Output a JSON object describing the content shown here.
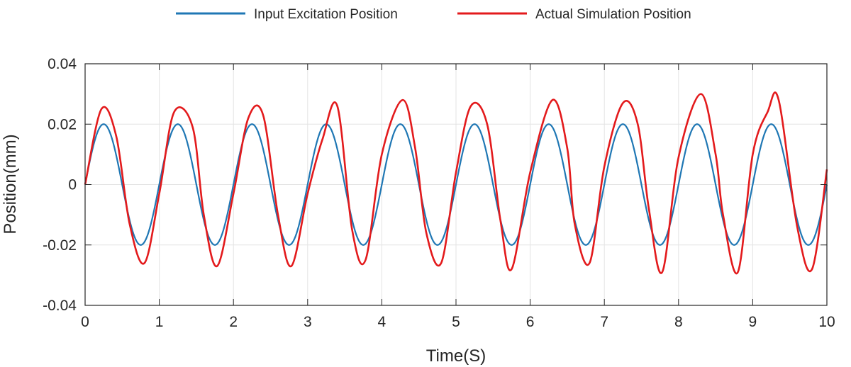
{
  "chart_data": {
    "type": "line",
    "xlabel": "Time(S)",
    "ylabel": "Position(mm)",
    "xlim": [
      0,
      10
    ],
    "ylim": [
      -0.04,
      0.04
    ],
    "x_ticks": [
      0,
      1,
      2,
      3,
      4,
      5,
      6,
      7,
      8,
      9,
      10
    ],
    "x_tick_labels": [
      "0",
      "1",
      "2",
      "3",
      "4",
      "5",
      "6",
      "7",
      "8",
      "9",
      "10"
    ],
    "y_ticks": [
      0.04,
      0.02,
      0,
      -0.02,
      -0.04
    ],
    "y_tick_labels": [
      "0.04",
      "0.02",
      "0",
      "-0.02",
      "-0.04"
    ],
    "grid": true,
    "legend_position": "top-center",
    "series": [
      {
        "name": "Input Excitation Position",
        "color": "#1f77b4",
        "amplitude": 0.02,
        "period": 1.0,
        "x": [
          0,
          0.25,
          0.5,
          0.75,
          1.0,
          1.25,
          1.5,
          1.75,
          2.0,
          2.25,
          2.5,
          2.75,
          3.0,
          3.25,
          3.5,
          3.75,
          4.0,
          4.25,
          4.5,
          4.75,
          5.0,
          5.25,
          5.5,
          5.75,
          6.0,
          6.25,
          6.5,
          6.75,
          7.0,
          7.25,
          7.5,
          7.75,
          8.0,
          8.25,
          8.5,
          8.75,
          9.0,
          9.25,
          9.5,
          9.75,
          10.0
        ],
        "y": [
          0,
          0.02,
          0,
          -0.02,
          0,
          0.02,
          0,
          -0.02,
          0,
          0.02,
          0,
          -0.02,
          0,
          0.02,
          0,
          -0.02,
          0,
          0.02,
          0,
          -0.02,
          0,
          0.02,
          0,
          -0.02,
          0,
          0.02,
          0,
          -0.02,
          0,
          0.02,
          0,
          -0.02,
          0,
          0.02,
          0,
          -0.02,
          0,
          0.02,
          0,
          -0.02,
          0
        ]
      },
      {
        "name": "Actual Simulation Position",
        "color": "#e31a1c",
        "x": [
          0,
          0.22,
          0.42,
          0.6,
          0.8,
          1.0,
          1.2,
          1.45,
          1.6,
          1.78,
          2.0,
          2.2,
          2.4,
          2.6,
          2.78,
          3.0,
          3.2,
          3.4,
          3.6,
          3.78,
          4.0,
          4.28,
          4.45,
          4.6,
          4.8,
          5.0,
          5.2,
          5.42,
          5.6,
          5.75,
          6.0,
          6.3,
          6.5,
          6.6,
          6.8,
          7.0,
          7.25,
          7.45,
          7.6,
          7.78,
          8.0,
          8.3,
          8.5,
          8.6,
          8.8,
          9.0,
          9.2,
          9.35,
          9.6,
          9.8,
          10.0
        ],
        "y": [
          0,
          0.025,
          0.016,
          -0.013,
          -0.026,
          -0.003,
          0.024,
          0.019,
          -0.01,
          -0.027,
          -0.003,
          0.022,
          0.023,
          -0.01,
          -0.027,
          -0.003,
          0.015,
          0.026,
          -0.015,
          -0.025,
          0.01,
          0.028,
          0.012,
          -0.016,
          -0.026,
          0.004,
          0.026,
          0.02,
          -0.012,
          -0.028,
          0.004,
          0.028,
          0.012,
          -0.013,
          -0.026,
          0.006,
          0.027,
          0.02,
          -0.008,
          -0.029,
          0.009,
          0.03,
          0.01,
          -0.01,
          -0.029,
          0.01,
          0.024,
          0.028,
          -0.014,
          -0.028,
          0.005
        ]
      }
    ]
  }
}
